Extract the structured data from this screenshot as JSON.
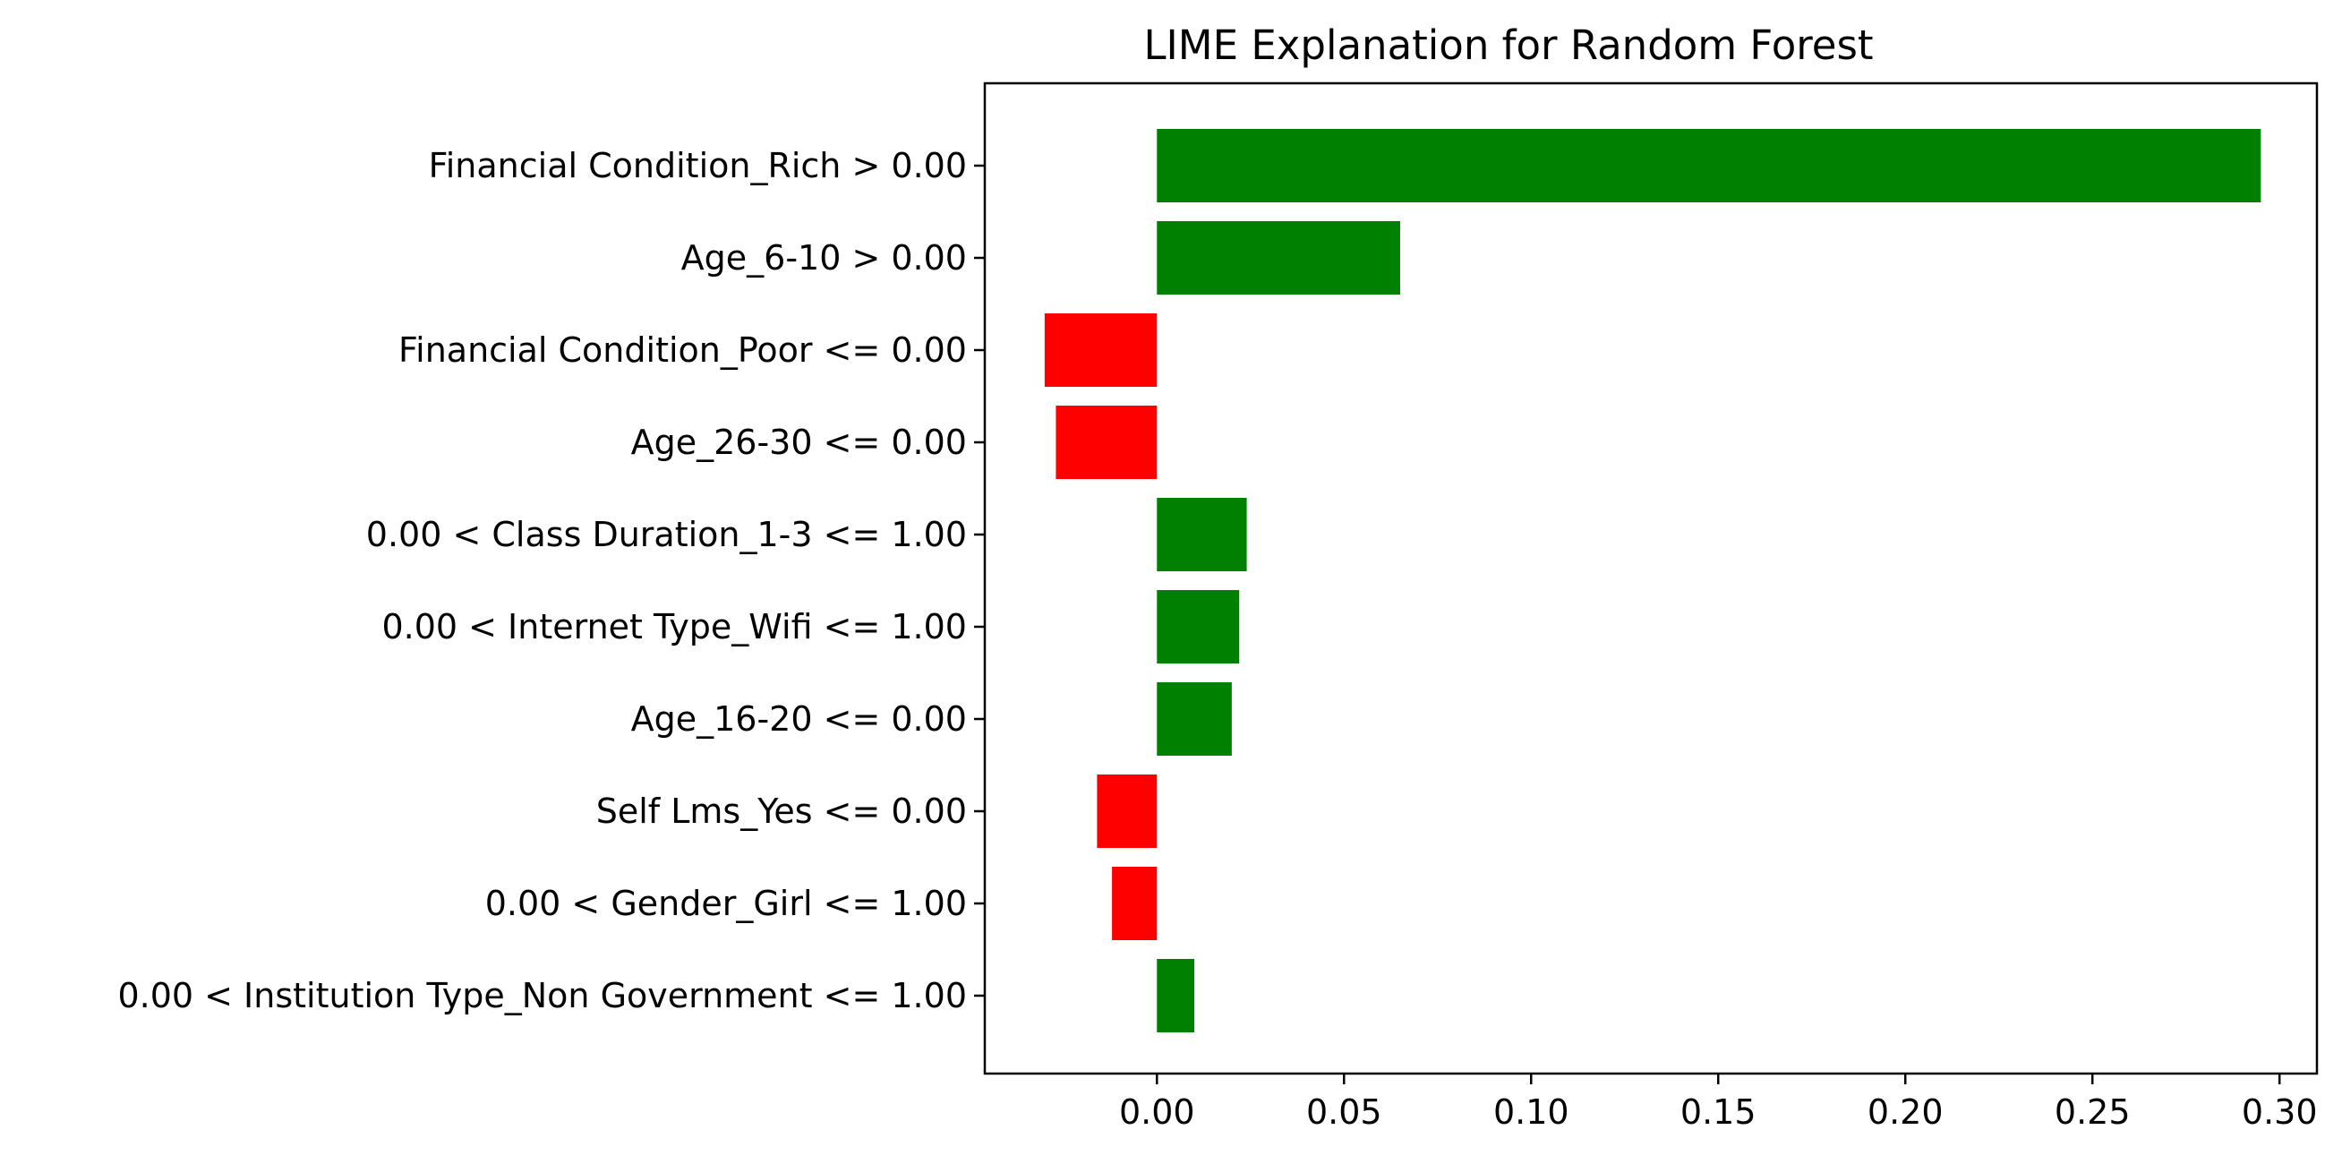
{
  "chart_data": {
    "type": "bar",
    "orientation": "horizontal",
    "title": "LIME Explanation for Random Forest",
    "xlabel": "",
    "ylabel": "",
    "categories": [
      "Financial Condition_Rich > 0.00",
      "Age_6-10 > 0.00",
      "Financial Condition_Poor <= 0.00",
      "Age_26-30 <= 0.00",
      "0.00 < Class Duration_1-3 <= 1.00",
      "0.00 < Internet Type_Wifi <= 1.00",
      "Age_16-20 <= 0.00",
      "Self Lms_Yes <= 0.00",
      "0.00 < Gender_Girl <= 1.00",
      "0.00 < Institution Type_Non Government <= 1.00"
    ],
    "values": [
      0.295,
      0.065,
      -0.03,
      -0.027,
      0.024,
      0.022,
      0.02,
      -0.016,
      -0.012,
      0.01
    ],
    "xlim": [
      -0.046,
      0.31
    ],
    "xticks": [
      0.0,
      0.05,
      0.1,
      0.15,
      0.2,
      0.25,
      0.3
    ],
    "xtick_labels": [
      "0.00",
      "0.05",
      "0.10",
      "0.15",
      "0.20",
      "0.25",
      "0.30"
    ],
    "colors": {
      "positive": "#008000",
      "negative": "#ff0000",
      "axis": "#000000"
    },
    "grid": false,
    "legend": "none"
  }
}
